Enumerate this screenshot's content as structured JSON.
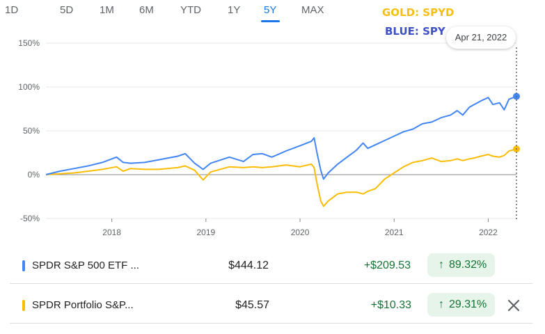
{
  "range_tabs": [
    {
      "label": "1D",
      "active": false
    },
    {
      "label": "5D",
      "active": false
    },
    {
      "label": "1M",
      "active": false
    },
    {
      "label": "6M",
      "active": false
    },
    {
      "label": "YTD",
      "active": false
    },
    {
      "label": "1Y",
      "active": false
    },
    {
      "label": "5Y",
      "active": true
    },
    {
      "label": "MAX",
      "active": false
    }
  ],
  "annotations": {
    "gold": "GOLD: SPYD",
    "blue": "BLUE: SPY",
    "gold_color": "#f5bf16",
    "blue_color": "#3f51c8"
  },
  "tooltip": {
    "date": "Apr 21, 2022"
  },
  "colors": {
    "spy": "#4285f4",
    "spyd": "#fbbc04",
    "positive": "#137333",
    "positive_bg": "#e6f4ea",
    "active_tab": "#1a73e8"
  },
  "chart_data": {
    "type": "line",
    "y_unit": "%",
    "y_ticks": [
      "150%",
      "100%",
      "50%",
      "0%",
      "-50%"
    ],
    "y_tick_values": [
      150,
      100,
      50,
      0,
      -50
    ],
    "ylim": [
      -50,
      150
    ],
    "x_ticks": [
      "2018",
      "2019",
      "2020",
      "2021",
      "2022"
    ],
    "x_tick_values": [
      2018,
      2019,
      2020,
      2021,
      2022
    ],
    "xlim": [
      2017.3,
      2022.3
    ],
    "grid": true,
    "series": [
      {
        "name": "SPDR S&P 500 ETF ...",
        "color": "#4285f4",
        "points": [
          [
            2017.3,
            0
          ],
          [
            2017.45,
            4
          ],
          [
            2017.6,
            7
          ],
          [
            2017.75,
            10
          ],
          [
            2017.9,
            14
          ],
          [
            2018.05,
            20
          ],
          [
            2018.12,
            14
          ],
          [
            2018.2,
            13
          ],
          [
            2018.35,
            14
          ],
          [
            2018.5,
            17
          ],
          [
            2018.7,
            21
          ],
          [
            2018.78,
            24
          ],
          [
            2018.88,
            13
          ],
          [
            2018.97,
            6
          ],
          [
            2019.05,
            13
          ],
          [
            2019.25,
            20
          ],
          [
            2019.4,
            15
          ],
          [
            2019.5,
            23
          ],
          [
            2019.6,
            24
          ],
          [
            2019.7,
            20
          ],
          [
            2019.85,
            27
          ],
          [
            2020.0,
            33
          ],
          [
            2020.12,
            38
          ],
          [
            2020.15,
            42
          ],
          [
            2020.18,
            25
          ],
          [
            2020.22,
            5
          ],
          [
            2020.25,
            -5
          ],
          [
            2020.3,
            2
          ],
          [
            2020.4,
            12
          ],
          [
            2020.5,
            20
          ],
          [
            2020.6,
            28
          ],
          [
            2020.67,
            36
          ],
          [
            2020.72,
            30
          ],
          [
            2020.8,
            34
          ],
          [
            2020.9,
            39
          ],
          [
            2021.0,
            44
          ],
          [
            2021.1,
            49
          ],
          [
            2021.2,
            52
          ],
          [
            2021.3,
            58
          ],
          [
            2021.4,
            60
          ],
          [
            2021.5,
            65
          ],
          [
            2021.6,
            68
          ],
          [
            2021.67,
            73
          ],
          [
            2021.73,
            68
          ],
          [
            2021.8,
            77
          ],
          [
            2021.85,
            80
          ],
          [
            2021.92,
            84
          ],
          [
            2022.0,
            88
          ],
          [
            2022.05,
            80
          ],
          [
            2022.12,
            82
          ],
          [
            2022.17,
            74
          ],
          [
            2022.22,
            86
          ],
          [
            2022.3,
            89.32
          ]
        ]
      },
      {
        "name": "SPDR Portfolio S&P...",
        "color": "#fbbc04",
        "points": [
          [
            2017.3,
            0
          ],
          [
            2017.45,
            1
          ],
          [
            2017.6,
            2
          ],
          [
            2017.75,
            4
          ],
          [
            2017.9,
            6
          ],
          [
            2018.05,
            9
          ],
          [
            2018.12,
            4
          ],
          [
            2018.2,
            7
          ],
          [
            2018.35,
            6
          ],
          [
            2018.5,
            6
          ],
          [
            2018.7,
            8
          ],
          [
            2018.78,
            10
          ],
          [
            2018.88,
            5
          ],
          [
            2018.97,
            -6
          ],
          [
            2019.05,
            3
          ],
          [
            2019.25,
            9
          ],
          [
            2019.4,
            8
          ],
          [
            2019.5,
            9
          ],
          [
            2019.6,
            8
          ],
          [
            2019.7,
            9
          ],
          [
            2019.85,
            11
          ],
          [
            2020.0,
            9
          ],
          [
            2020.12,
            12
          ],
          [
            2020.15,
            8
          ],
          [
            2020.18,
            -10
          ],
          [
            2020.22,
            -30
          ],
          [
            2020.25,
            -36
          ],
          [
            2020.3,
            -30
          ],
          [
            2020.4,
            -22
          ],
          [
            2020.5,
            -20
          ],
          [
            2020.6,
            -20
          ],
          [
            2020.67,
            -22
          ],
          [
            2020.72,
            -19
          ],
          [
            2020.8,
            -16
          ],
          [
            2020.9,
            -5
          ],
          [
            2021.0,
            2
          ],
          [
            2021.1,
            9
          ],
          [
            2021.2,
            14
          ],
          [
            2021.3,
            16
          ],
          [
            2021.4,
            19
          ],
          [
            2021.5,
            15
          ],
          [
            2021.6,
            16
          ],
          [
            2021.67,
            18
          ],
          [
            2021.73,
            16
          ],
          [
            2021.8,
            18
          ],
          [
            2021.85,
            19
          ],
          [
            2021.92,
            21
          ],
          [
            2022.0,
            23
          ],
          [
            2022.05,
            21
          ],
          [
            2022.12,
            20
          ],
          [
            2022.17,
            22
          ],
          [
            2022.22,
            27
          ],
          [
            2022.3,
            29.31
          ]
        ]
      }
    ]
  },
  "holdings": [
    {
      "name": "SPDR S&P 500 ETF ...",
      "price": "$444.12",
      "change": "+$209.53",
      "percent": "89.32%",
      "color": "#4285f4"
    },
    {
      "name": "SPDR Portfolio S&P...",
      "price": "$45.57",
      "change": "+$10.33",
      "percent": "29.31%",
      "color": "#fbbc04"
    }
  ]
}
